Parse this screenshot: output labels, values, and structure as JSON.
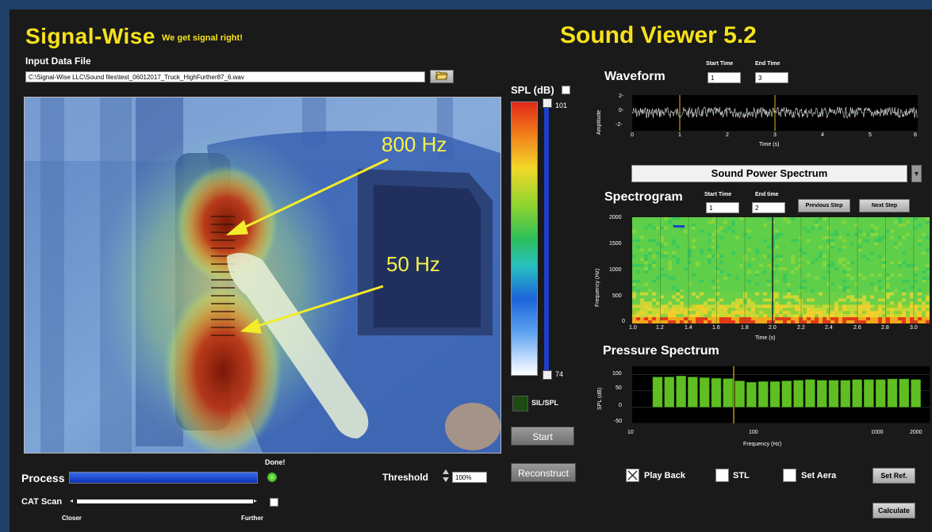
{
  "header": {
    "brand": "Signal-Wise",
    "tagline": "We get signal right!",
    "app_title": "Sound Viewer 5.2"
  },
  "input_file": {
    "label": "Input Data File",
    "path": "C:\\Signal-Wise LLC\\Sound files\\test_06012017_Truck_HighFurther87_6.wav"
  },
  "overlay": {
    "label_high": "800 Hz",
    "label_low": "50 Hz"
  },
  "spl_scale": {
    "title": "SPL (dB)",
    "max": "101",
    "min": "74",
    "sil_spl_label": "SIL/SPL"
  },
  "controls": {
    "start": "Start",
    "reconstruct": "Reconstruct",
    "threshold_label": "Threshold",
    "threshold_value": "100%",
    "process_label": "Process",
    "done_label": "Done!",
    "cat_scan_label": "CAT Scan",
    "closer": "Closer",
    "further": "Further",
    "play_back": "Play Back",
    "stl": "STL",
    "set_aera": "Set Aera",
    "set_ref": "Set Ref.",
    "calculate": "Calculate",
    "process_progress": 1.0
  },
  "waveform": {
    "title": "Waveform",
    "start_time_label": "Start Time",
    "end_time_label": "End Time",
    "start_time": "1",
    "end_time": "3",
    "ylabel": "Amplitude",
    "yticks": [
      "2-",
      "0-",
      "-2-"
    ],
    "xticks": [
      "0",
      "1",
      "2",
      "3",
      "4",
      "5",
      "6"
    ],
    "xlabel": "Time (s)"
  },
  "spectrum_select": {
    "value": "Sound Power Spectrum"
  },
  "spectrogram": {
    "title": "Spectrogram",
    "start_time_label": "Start Time",
    "end_time_label": "End time",
    "start_time": "1",
    "end_time": "2",
    "prev": "Previous Step",
    "next": "Next Step",
    "ylabel": "Frequency (Hz)",
    "yticks": [
      "2000",
      "1500",
      "1000",
      "500",
      "0"
    ],
    "xticks": [
      "1.0",
      "1.2",
      "1.4",
      "1.6",
      "1.8",
      "2.0",
      "2.2",
      "2.4",
      "2.6",
      "2.8",
      "3.0"
    ],
    "xlabel": "Time (s)"
  },
  "pressure": {
    "title": "Pressure Spectrum",
    "ylabel": "SPL (dB)",
    "yticks": [
      "100",
      "50",
      "0",
      "-50"
    ],
    "xticks": [
      "10",
      "100",
      "1000",
      "2000"
    ],
    "xlabel": "Frequency (Hz)",
    "bar_values": [
      92,
      92,
      95,
      92,
      90,
      88,
      87,
      80,
      76,
      78,
      78,
      80,
      82,
      84,
      82,
      82,
      82,
      84,
      84,
      84,
      86,
      86,
      84
    ]
  }
}
